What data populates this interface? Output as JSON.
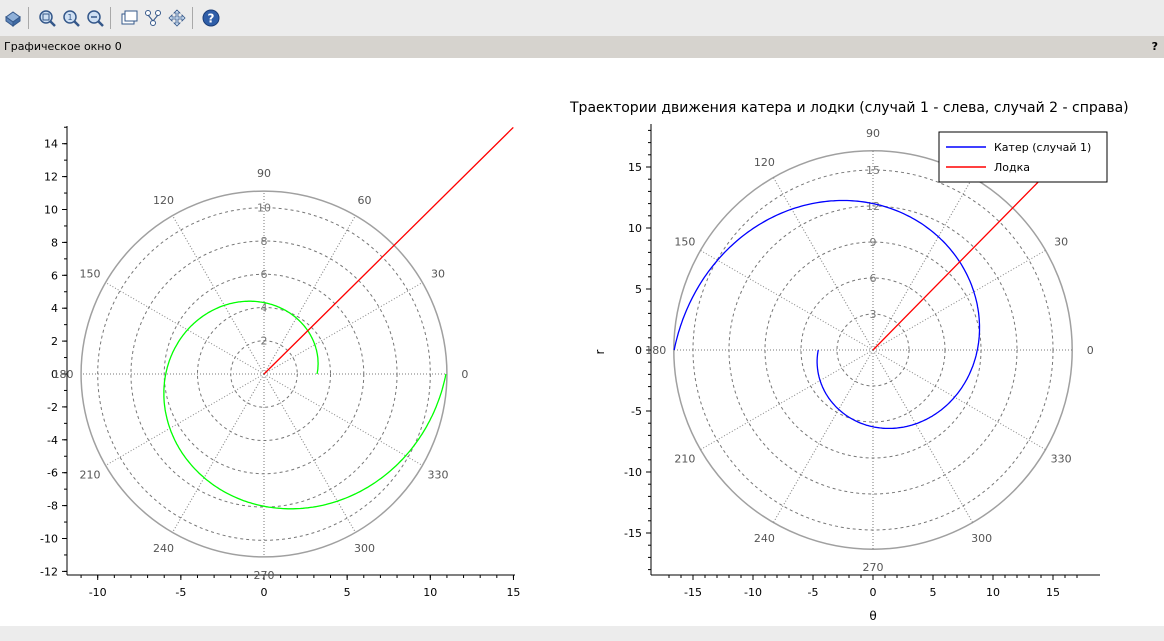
{
  "window": {
    "title": "Графическое окно 0",
    "help": "?"
  },
  "toolbar": {
    "buttons": [
      "rotate-icon",
      "zoom-area-icon",
      "zoom-in-icon",
      "zoom-out-icon",
      "datatip-icon",
      "edit-icon",
      "pan-icon",
      "help-icon"
    ]
  },
  "chart_data": [
    {
      "type": "polar-line",
      "title": "",
      "xlabel": "",
      "ylabel": "",
      "xticks": [
        "-10",
        "-5",
        "0",
        "5",
        "10",
        "15"
      ],
      "yticks": [
        "14",
        "12",
        "10",
        "8",
        "6",
        "4",
        "2",
        "0",
        "-2",
        "-4",
        "-6",
        "-8",
        "-10",
        "-12"
      ],
      "xlim": [
        -12,
        15
      ],
      "ylim": [
        -12,
        15
      ],
      "polar": {
        "r_max": 11,
        "radial_labels": [
          "2",
          "4",
          "6",
          "8",
          "10"
        ],
        "angle_labels": [
          "0",
          "30",
          "60",
          "90",
          "120",
          "150",
          "180",
          "210",
          "240",
          "270",
          "300",
          "330"
        ]
      },
      "series": [
        {
          "color": "#00ff00",
          "formula": "spiral r = 3.19*exp(θ/tan(α)), θ from 0 to 2π",
          "r0": 3.19,
          "r_end": 10.94
        },
        {
          "color": "#ff0000",
          "formula": "ray at 45°, r from 0 to 21.2"
        }
      ]
    },
    {
      "type": "polar-line",
      "title": "Траектории движения катера и лодки (случай 1 - слева, случай 2 - справа)",
      "xlabel": "θ",
      "ylabel": "r",
      "xticks": [
        "-15",
        "-10",
        "-5",
        "0",
        "5",
        "10",
        "15"
      ],
      "yticks": [
        "15",
        "10",
        "5",
        "0",
        "-5",
        "-10",
        "-15"
      ],
      "xlim": [
        -17,
        17
      ],
      "ylim": [
        -19,
        19
      ],
      "polar": {
        "r_max": 16.6,
        "radial_labels": [
          "3",
          "6",
          "9",
          "12",
          "15"
        ],
        "angle_labels": [
          "0",
          "30",
          "60",
          "90",
          "120",
          "150",
          "180",
          "210",
          "240",
          "270",
          "300",
          "330"
        ]
      },
      "legend": {
        "placement": "top-right",
        "entries": [
          {
            "name": "Катер (случай 1)",
            "color": "#0000ff"
          },
          {
            "name": "Лодка",
            "color": "#ff0000"
          }
        ]
      },
      "series": [
        {
          "name": "Катер (случай 1)",
          "color": "#0000ff",
          "formula": "spiral r = 4.56*exp((θ-π)/tan(α)), θ from π to 3π",
          "r0": 4.56,
          "r_end": 16.57
        },
        {
          "name": "Лодка",
          "color": "#ff0000",
          "formula": "ray at 45°, r from 0 to 21"
        }
      ]
    }
  ]
}
